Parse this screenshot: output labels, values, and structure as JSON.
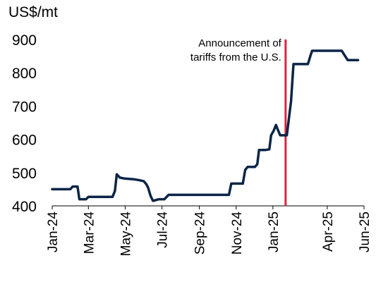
{
  "chart_data": {
    "type": "line",
    "title": "",
    "xlabel": "",
    "ylabel": "US$/mt",
    "ylim": [
      400,
      900
    ],
    "yticks": [
      400,
      500,
      600,
      700,
      800,
      900
    ],
    "grid": false,
    "legend": "none",
    "x_tick_labels": [
      "Jan-24",
      "Mar-24",
      "May-24",
      "Jul-24",
      "Sep-24",
      "Nov-24",
      "Jan-25",
      "Apr-25",
      "Jun-25"
    ],
    "x_tick_dates": [
      "2024-01-01",
      "2024-03-01",
      "2024-05-01",
      "2024-07-01",
      "2024-09-01",
      "2024-11-01",
      "2025-01-01",
      "2025-04-01",
      "2025-06-01"
    ],
    "series": [
      {
        "color": "#0b2546",
        "points": [
          [
            "2024-01-01",
            450
          ],
          [
            "2024-01-31",
            450
          ],
          [
            "2024-02-04",
            458
          ],
          [
            "2024-02-12",
            458
          ],
          [
            "2024-02-15",
            420
          ],
          [
            "2024-02-26",
            420
          ],
          [
            "2024-03-01",
            427
          ],
          [
            "2024-04-10",
            427
          ],
          [
            "2024-04-14",
            445
          ],
          [
            "2024-04-17",
            495
          ],
          [
            "2024-04-22",
            485
          ],
          [
            "2024-04-30",
            482
          ],
          [
            "2024-05-15",
            480
          ],
          [
            "2024-05-25",
            477
          ],
          [
            "2024-06-01",
            474
          ],
          [
            "2024-06-05",
            465
          ],
          [
            "2024-06-08",
            455
          ],
          [
            "2024-06-12",
            430
          ],
          [
            "2024-06-16",
            415
          ],
          [
            "2024-06-22",
            418
          ],
          [
            "2024-06-26",
            420
          ],
          [
            "2024-07-05",
            420
          ],
          [
            "2024-07-12",
            433
          ],
          [
            "2024-10-20",
            433
          ],
          [
            "2024-10-24",
            467
          ],
          [
            "2024-11-12",
            467
          ],
          [
            "2024-11-16",
            508
          ],
          [
            "2024-11-20",
            517
          ],
          [
            "2024-12-02",
            517
          ],
          [
            "2024-12-06",
            525
          ],
          [
            "2024-12-09",
            568
          ],
          [
            "2024-12-20",
            568
          ],
          [
            "2024-12-26",
            570
          ],
          [
            "2024-12-29",
            612
          ],
          [
            "2025-01-02",
            625
          ],
          [
            "2025-01-06",
            643
          ],
          [
            "2025-01-10",
            625
          ],
          [
            "2025-01-13",
            612
          ],
          [
            "2025-01-24",
            612
          ],
          [
            "2025-01-31",
            715
          ],
          [
            "2025-02-04",
            826
          ],
          [
            "2025-02-28",
            826
          ],
          [
            "2025-03-04",
            850
          ],
          [
            "2025-03-07",
            866
          ],
          [
            "2025-04-25",
            866
          ],
          [
            "2025-05-05",
            838
          ],
          [
            "2025-05-22",
            838
          ]
        ]
      }
    ],
    "annotations": [
      {
        "text_lines": [
          "Announcement of",
          "tariffs from the U.S."
        ],
        "x": "2025-01-22",
        "line_color": "#d7263d"
      }
    ]
  }
}
